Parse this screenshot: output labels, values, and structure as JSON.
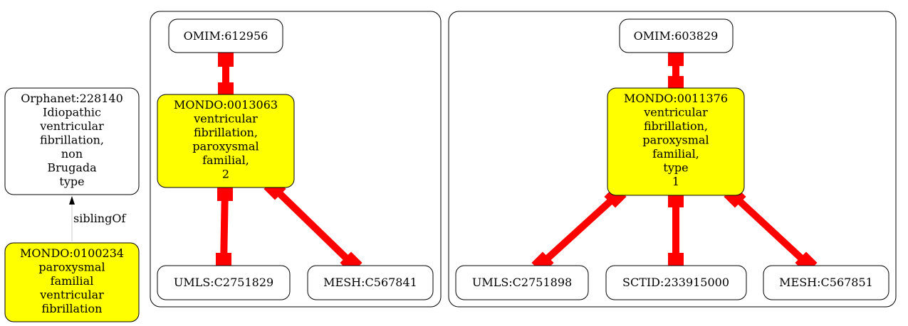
{
  "colors": {
    "highlight": "#ffff00",
    "plain": "#ffffff",
    "edge_strong": "#ff0000",
    "edge_weak": "#cccccc"
  },
  "nodes": {
    "orphanet": {
      "lines": [
        "Orphanet:228140",
        "Idiopathic",
        "ventricular",
        "fibrillation,",
        "non",
        "Brugada",
        "type"
      ],
      "fill": "plain"
    },
    "mondo_100234": {
      "lines": [
        "MONDO:0100234",
        "paroxysmal",
        "familial",
        "ventricular",
        "fibrillation"
      ],
      "fill": "highlight"
    },
    "omim_612956": {
      "lines": [
        "OMIM:612956"
      ],
      "fill": "plain"
    },
    "mondo_13063": {
      "lines": [
        "MONDO:0013063",
        "ventricular",
        "fibrillation,",
        "paroxysmal",
        "familial,",
        "2"
      ],
      "fill": "highlight"
    },
    "umls_2751829": {
      "lines": [
        "UMLS:C2751829"
      ],
      "fill": "plain"
    },
    "mesh_567841": {
      "lines": [
        "MESH:C567841"
      ],
      "fill": "plain"
    },
    "omim_603829": {
      "lines": [
        "OMIM:603829"
      ],
      "fill": "plain"
    },
    "mondo_11376": {
      "lines": [
        "MONDO:0011376",
        "ventricular",
        "fibrillation,",
        "paroxysmal",
        "familial,",
        "type",
        "1"
      ],
      "fill": "highlight"
    },
    "umls_2751898": {
      "lines": [
        "UMLS:C2751898"
      ],
      "fill": "plain"
    },
    "sctid_233915000": {
      "lines": [
        "SCTID:233915000"
      ],
      "fill": "plain"
    },
    "mesh_567851": {
      "lines": [
        "MESH:C567851"
      ],
      "fill": "plain"
    }
  },
  "edges": {
    "sibling": {
      "label": "siblingOf"
    }
  }
}
